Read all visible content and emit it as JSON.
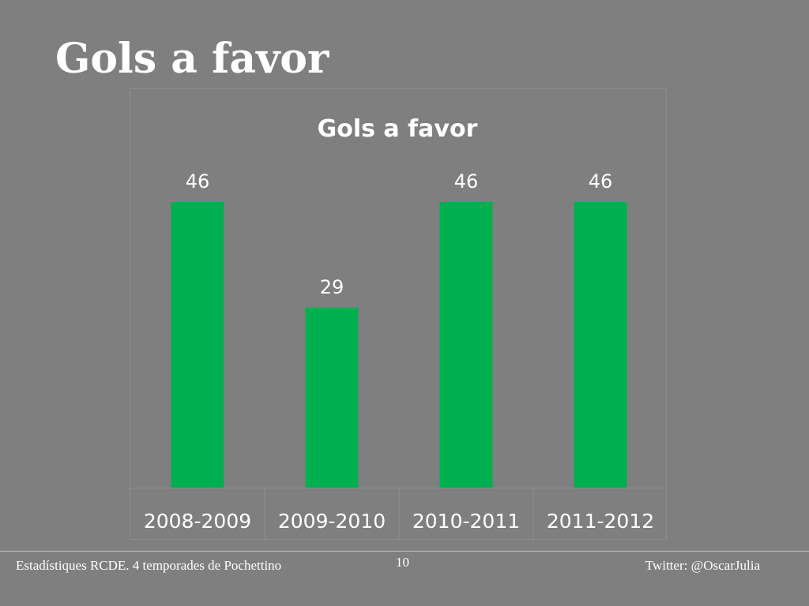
{
  "slide": {
    "title": "Gols a favor"
  },
  "footer": {
    "left": "Estadístiques RCDE. 4 temporades de Pochettino",
    "page_number": "10",
    "right": "Twitter: @OscarJulia"
  },
  "colors": {
    "background": "#7f7f7f",
    "bar": "#00b050",
    "text": "#ffffff"
  },
  "chart_data": {
    "type": "bar",
    "title": "Gols a favor",
    "categories": [
      "2008-2009",
      "2009-2010",
      "2010-2011",
      "2011-2012"
    ],
    "values": [
      46,
      29,
      46,
      46
    ],
    "data_labels": [
      "46",
      "29",
      "46",
      "46"
    ],
    "xlabel": "",
    "ylabel": "",
    "ylim": [
      0,
      46
    ],
    "grid": false,
    "legend": "none"
  }
}
